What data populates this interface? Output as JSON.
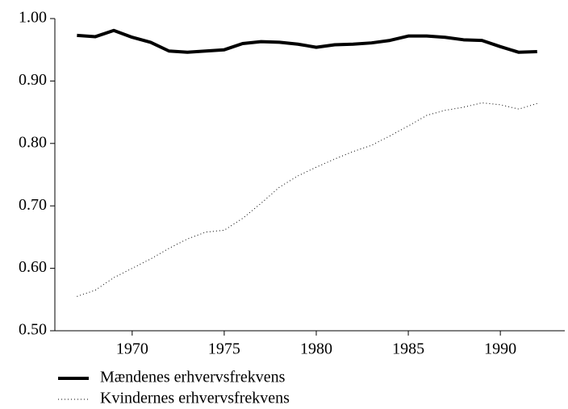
{
  "chart_data": {
    "type": "line",
    "x": [
      1967,
      1968,
      1969,
      1970,
      1971,
      1972,
      1973,
      1974,
      1975,
      1976,
      1977,
      1978,
      1979,
      1980,
      1981,
      1982,
      1983,
      1984,
      1985,
      1986,
      1987,
      1988,
      1989,
      1990,
      1991,
      1992
    ],
    "series": [
      {
        "name": "Mændenes erhvervsfrekvens",
        "color": "#000000",
        "style": "solid",
        "values": [
          0.973,
          0.971,
          0.981,
          0.97,
          0.962,
          0.948,
          0.946,
          0.948,
          0.95,
          0.96,
          0.963,
          0.962,
          0.959,
          0.954,
          0.958,
          0.959,
          0.961,
          0.965,
          0.972,
          0.972,
          0.97,
          0.966,
          0.965,
          0.955,
          0.946,
          0.947
        ]
      },
      {
        "name": "Kvindernes erhvervsfrekvens",
        "color": "#000000",
        "style": "dotted",
        "values": [
          0.555,
          0.565,
          0.585,
          0.6,
          0.615,
          0.632,
          0.647,
          0.658,
          0.661,
          0.68,
          0.704,
          0.73,
          0.748,
          0.762,
          0.775,
          0.787,
          0.797,
          0.812,
          0.828,
          0.845,
          0.853,
          0.858,
          0.865,
          0.862,
          0.855,
          0.864
        ]
      }
    ],
    "xlim": [
      1965.8,
      1993.5
    ],
    "xticks": [
      1970,
      1975,
      1980,
      1985,
      1990
    ],
    "ylim": [
      0.5,
      1
    ],
    "yticks": [
      {
        "value": 0.5,
        "label": "0.50"
      },
      {
        "value": 0.6,
        "label": "0.60"
      },
      {
        "value": 0.7,
        "label": "0.70"
      },
      {
        "value": 0.8,
        "label": "0.80"
      },
      {
        "value": 0.9,
        "label": "0.90"
      },
      {
        "value": 1,
        "label": "1.00"
      }
    ],
    "grid": false,
    "legend": "bottom-left"
  }
}
